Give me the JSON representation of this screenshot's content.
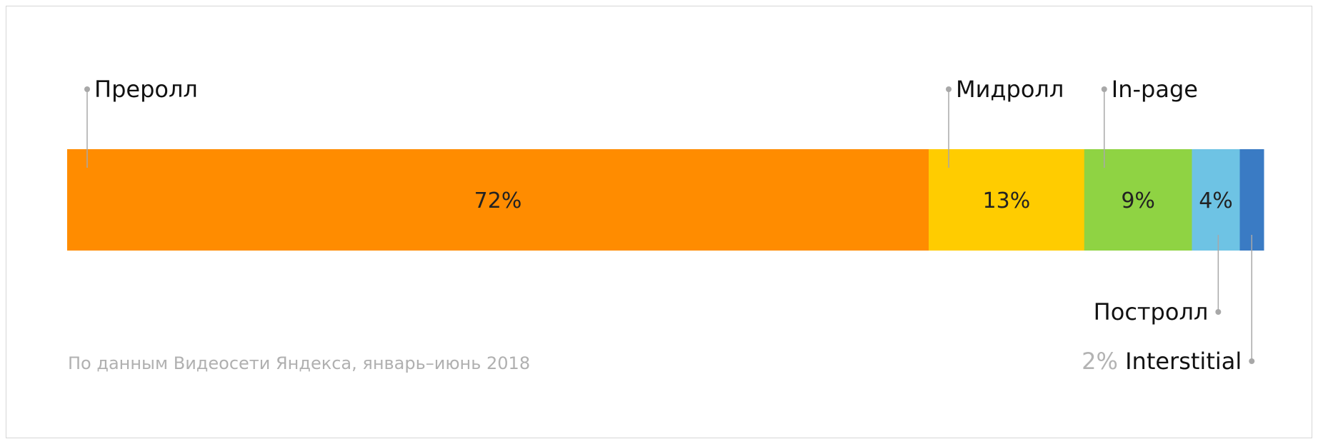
{
  "chart_data": {
    "type": "bar",
    "orientation": "horizontal-stacked-100",
    "title": "",
    "xlabel": "",
    "ylabel": "",
    "xlim": [
      0,
      100
    ],
    "grid": false,
    "legend": "none",
    "categories": [
      "Преролл",
      "Мидролл",
      "In-page",
      "Постролл",
      "Interstitial"
    ],
    "values": [
      72,
      13,
      9,
      4,
      2
    ],
    "value_labels": [
      "72%",
      "13%",
      "9%",
      "4%",
      "2%"
    ],
    "colors": [
      "#ff8c00",
      "#ffcc00",
      "#8fd343",
      "#6ec3e4",
      "#3a7bc4"
    ],
    "source_note": "По данным Видеосети Яндекса, январь–июнь 2018"
  }
}
